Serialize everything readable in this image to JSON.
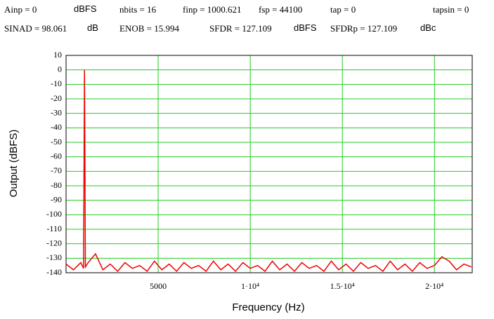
{
  "header": {
    "row1": [
      "Ainp = 0",
      "dBFS",
      "nbits = 16",
      "finp = 1000.621",
      "fsp = 44100",
      "tap = 0",
      "tapsin = 0"
    ],
    "row2": [
      "SINAD = 98.061",
      "dB",
      "ENOB = 15.994",
      "SFDR = 127.109",
      "dBFS",
      "SFDRp = 127.109",
      "dBc"
    ]
  },
  "chart_data": {
    "type": "line",
    "x_label": "Frequency (Hz)",
    "y_label": "Output (dBFS)",
    "xlim": [
      0,
      22050
    ],
    "ylim": [
      -140,
      10
    ],
    "xticks": [
      5000,
      {
        "value": 10000,
        "label": "1·10⁴"
      },
      {
        "value": 15000,
        "label": "1.5·10⁴"
      },
      {
        "value": 20000,
        "label": "2·10⁴"
      }
    ],
    "yticks": [
      10,
      0,
      -10,
      -20,
      -30,
      -40,
      -50,
      -60,
      -70,
      -80,
      -90,
      -100,
      -110,
      -120,
      -130,
      -140
    ],
    "grid": true,
    "grid_color": "#22cc22",
    "x": [
      0,
      400,
      800,
      950,
      1000.621,
      1050,
      1200,
      1600,
      2000,
      2400,
      2800,
      3200,
      3600,
      4000,
      4400,
      4800,
      5200,
      5600,
      6000,
      6400,
      6800,
      7200,
      7600,
      8000,
      8400,
      8800,
      9200,
      9600,
      10000,
      10400,
      10800,
      11200,
      11600,
      12000,
      12400,
      12800,
      13200,
      13600,
      14000,
      14400,
      14800,
      15200,
      15600,
      16000,
      16400,
      16800,
      17200,
      17600,
      18000,
      18400,
      18800,
      19200,
      19600,
      20000,
      20400,
      20800,
      21200,
      21600,
      22000
    ],
    "series": [
      {
        "color": "#ee0000",
        "values": [
          -134,
          -138,
          -133,
          -137,
          0,
          -136,
          -133,
          -127,
          -138,
          -134,
          -139,
          -133,
          -137,
          -135,
          -139,
          -132,
          -138,
          -134,
          -139,
          -133,
          -137,
          -135,
          -139,
          -132,
          -138,
          -134,
          -139,
          -133,
          -137,
          -135,
          -139,
          -132,
          -138,
          -134,
          -139,
          -133,
          -137,
          -135,
          -139,
          -132,
          -138,
          -134,
          -139,
          -133,
          -137,
          -135,
          -139,
          -132,
          -138,
          -134,
          -139,
          -133,
          -137,
          -135,
          -129,
          -132,
          -138,
          -134,
          -136
        ]
      }
    ]
  }
}
